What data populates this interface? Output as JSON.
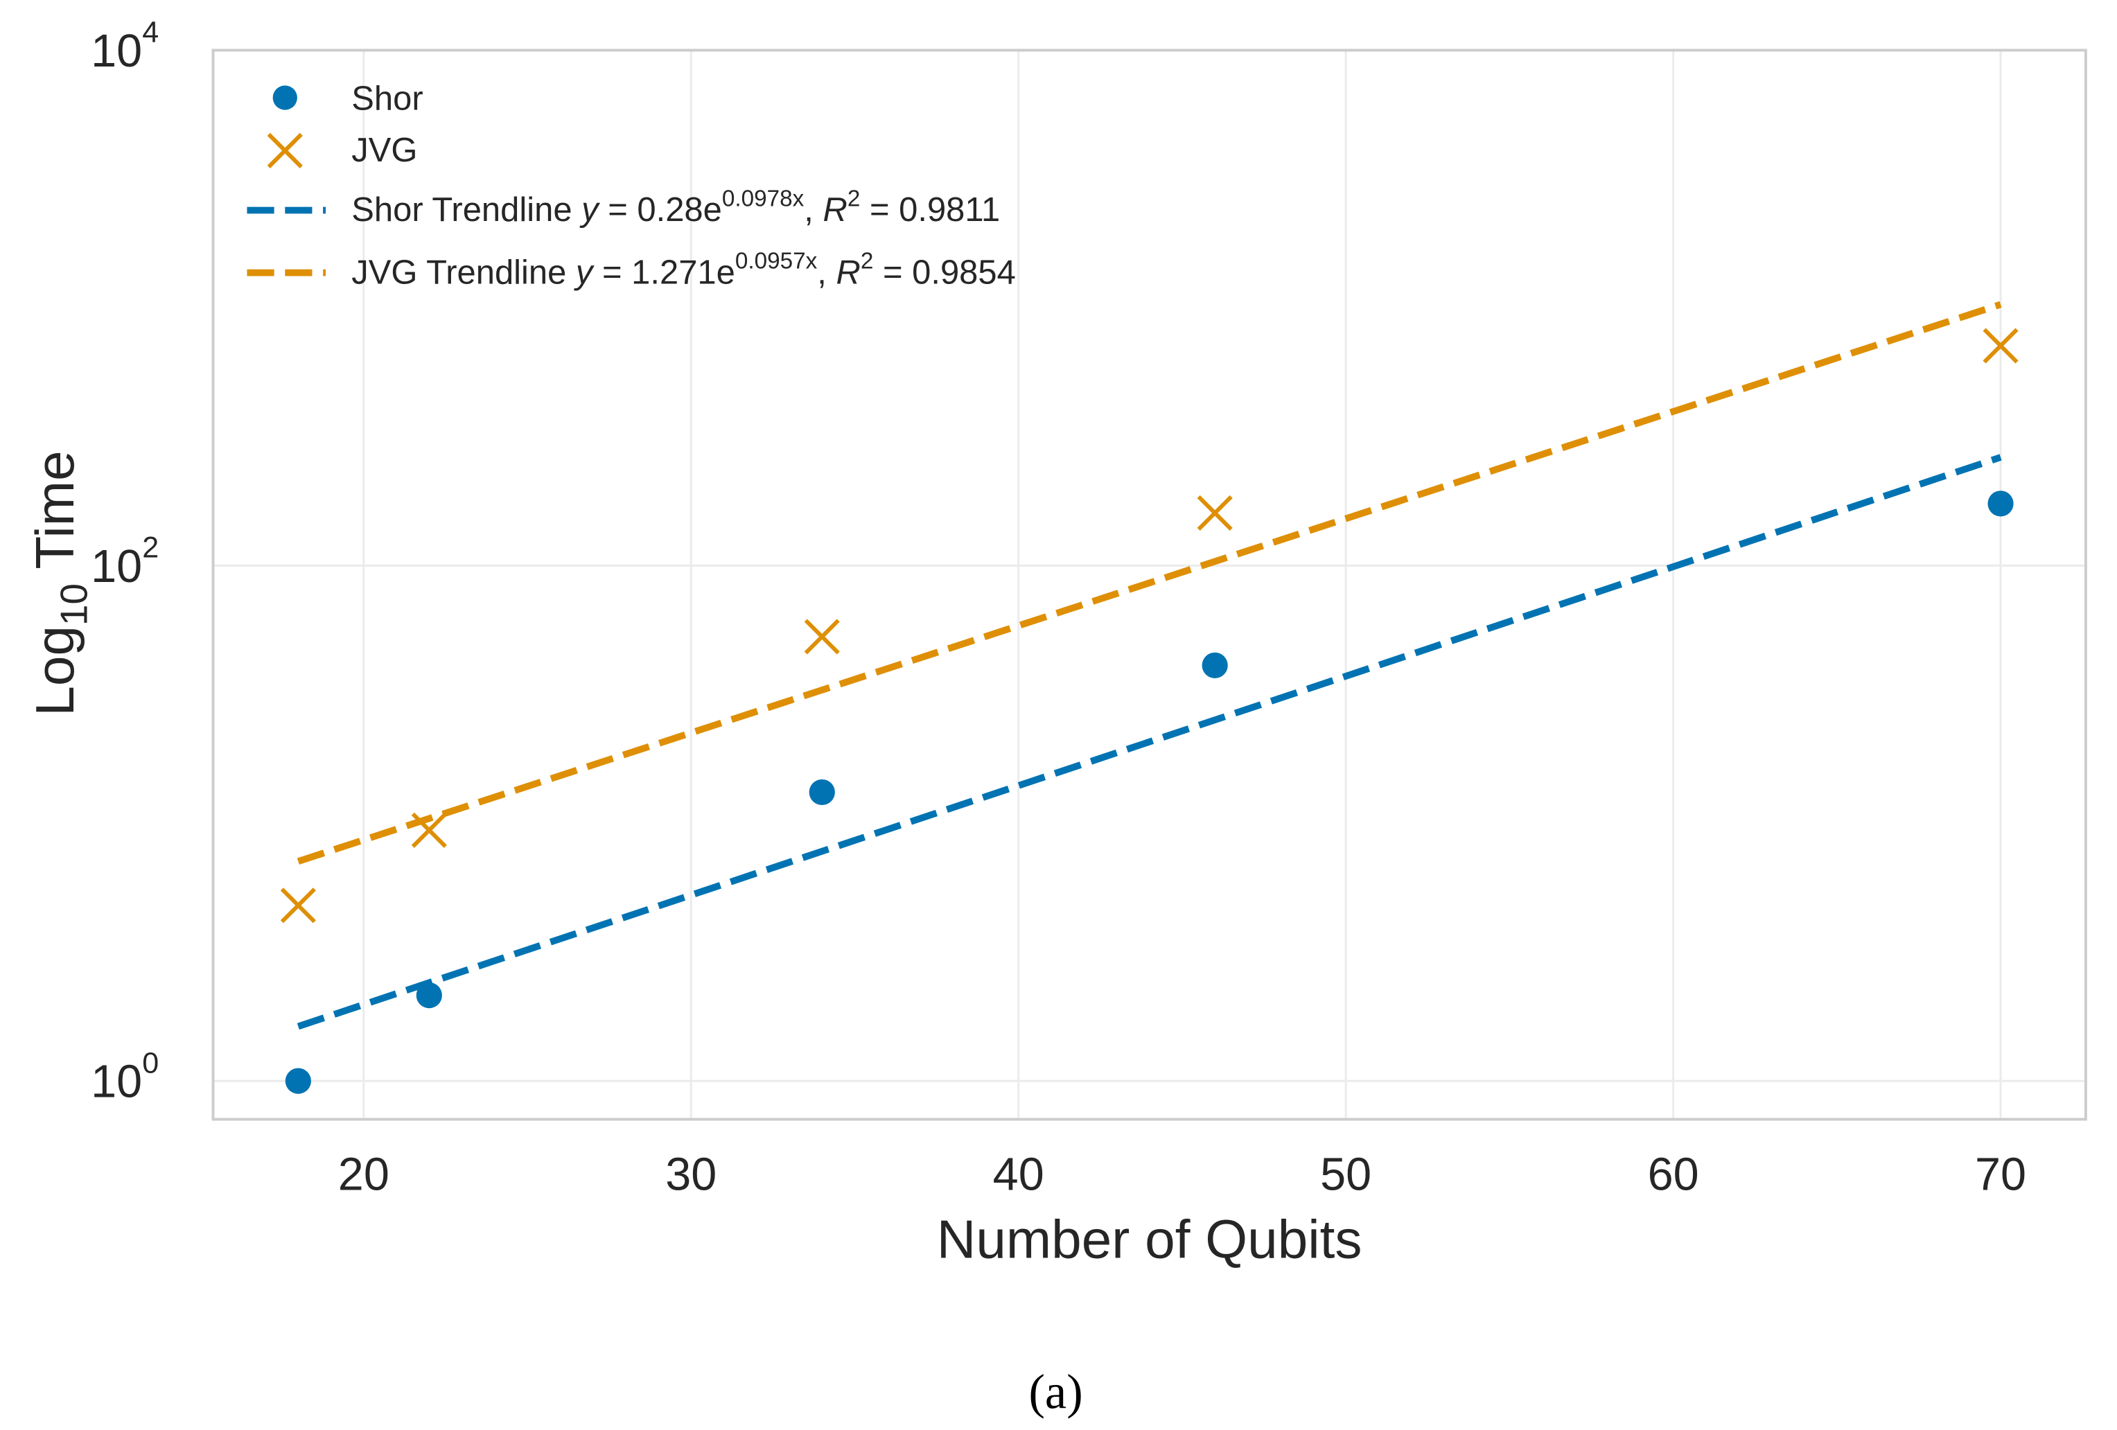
{
  "chart_data": {
    "type": "scatter",
    "xlabel": "Number of Qubits",
    "ylabel_main": "Log",
    "ylabel_sub": "10",
    "ylabel_rest": " Time",
    "caption": "(a)",
    "xlim": [
      15.4,
      72.6
    ],
    "ylim": [
      0.71,
      10000
    ],
    "yscale": "log",
    "grid": true,
    "legend_position": "top-left",
    "xticks": [
      20,
      30,
      40,
      50,
      60,
      70
    ],
    "yticks": [
      {
        "value": 1,
        "base": "10",
        "exp": "0"
      },
      {
        "value": 100,
        "base": "10",
        "exp": "2"
      },
      {
        "value": 10000,
        "base": "10",
        "exp": "4"
      }
    ],
    "series": [
      {
        "name": "Shor",
        "kind": "scatter",
        "marker": "circle",
        "color": "#0173b2",
        "x": [
          18,
          22,
          34,
          46,
          70
        ],
        "y": [
          1.0,
          2.15,
          13.2,
          41,
          174
        ]
      },
      {
        "name": "JVG",
        "kind": "scatter",
        "marker": "x",
        "color": "#de8f05",
        "x": [
          18,
          22,
          34,
          46,
          70
        ],
        "y": [
          4.8,
          9.4,
          53,
          160,
          713
        ]
      },
      {
        "name": "Shor Trendline",
        "kind": "line",
        "style": "dashed",
        "color": "#0173b2",
        "a": 0.28,
        "b": 0.0978,
        "r2": "0.9811",
        "x_range": [
          18,
          70
        ],
        "legend": {
          "prefix": "Shor Trendline ",
          "eq_lhs": "y",
          "eq_mid": " = 0.28e",
          "exp": "0.0978x",
          "r": "R",
          "r_exp": "2",
          "r_val": " = 0.9811"
        }
      },
      {
        "name": "JVG Trendline",
        "kind": "line",
        "style": "dashed",
        "color": "#de8f05",
        "a": 1.271,
        "b": 0.0957,
        "r2": "0.9854",
        "x_range": [
          18,
          70
        ],
        "legend": {
          "prefix": "JVG Trendline ",
          "eq_lhs": "y",
          "eq_mid": " = 1.271e",
          "exp": "0.0957x",
          "r": "R",
          "r_exp": "2",
          "r_val": " = 0.9854"
        }
      }
    ]
  }
}
